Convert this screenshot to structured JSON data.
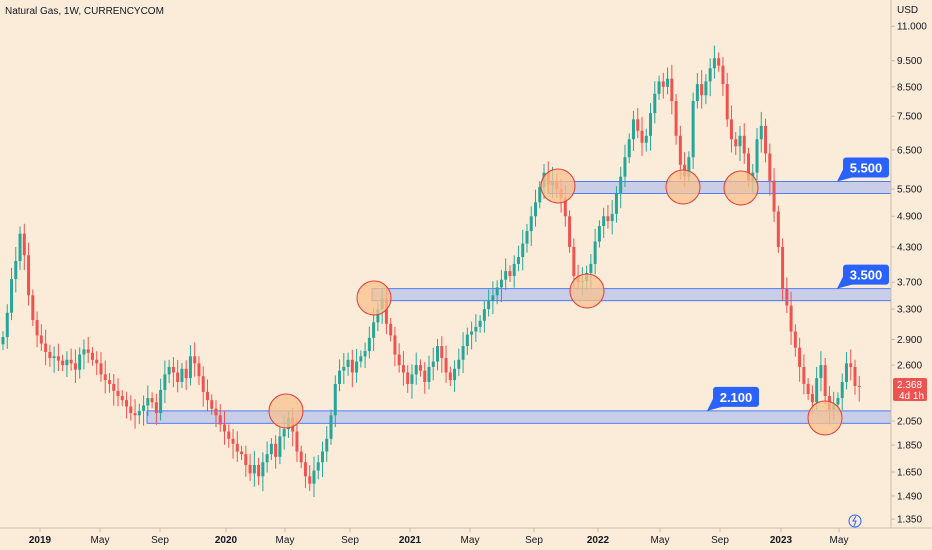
{
  "chart_data": {
    "type": "candlestick",
    "title": "Natural Gas, 1W, CURRENCYCOM",
    "currency": "USD",
    "y_scale": "log",
    "ylim": [
      1.3,
      12.3
    ],
    "y_ticks": [
      "11.000",
      "9.500",
      "8.500",
      "7.500",
      "6.500",
      "5.500",
      "4.900",
      "4.300",
      "3.700",
      "3.300",
      "2.900",
      "2.600",
      "2.050",
      "1.850",
      "1.650",
      "1.490",
      "1.350"
    ],
    "x_ticks": [
      {
        "label": "2019",
        "year": true
      },
      {
        "label": "May",
        "year": false
      },
      {
        "label": "Sep",
        "year": false
      },
      {
        "label": "2020",
        "year": true
      },
      {
        "label": "May",
        "year": false
      },
      {
        "label": "Sep",
        "year": false
      },
      {
        "label": "2021",
        "year": true
      },
      {
        "label": "May",
        "year": false
      },
      {
        "label": "Sep",
        "year": false
      },
      {
        "label": "2022",
        "year": true
      },
      {
        "label": "May",
        "year": false
      },
      {
        "label": "Sep",
        "year": false
      },
      {
        "label": "2023",
        "year": true
      },
      {
        "label": "May",
        "year": false
      }
    ],
    "colors": {
      "up": "#26a69a",
      "down": "#ef5350",
      "zone_fill": "#b8c4ee",
      "zone_stroke": "#2962ff",
      "tag": "#2962ff",
      "circle_fill": "#f9c28e",
      "circle_stroke": "#e53935",
      "background": "#faecd8"
    },
    "levels": [
      {
        "label": "5.500",
        "low": 5.4,
        "high": 5.68
      },
      {
        "label": "3.500",
        "low": 3.42,
        "high": 3.6
      },
      {
        "label": "2.100",
        "low": 2.03,
        "high": 2.14
      }
    ],
    "current_price": {
      "value": "2.368",
      "countdown": "4d 1h"
    },
    "weekly_closes": [
      2.93,
      3.25,
      3.75,
      4.05,
      4.55,
      4.15,
      3.5,
      3.15,
      2.95,
      2.85,
      2.75,
      2.68,
      2.7,
      2.65,
      2.6,
      2.66,
      2.62,
      2.55,
      2.72,
      2.78,
      2.74,
      2.66,
      2.62,
      2.5,
      2.44,
      2.4,
      2.33,
      2.28,
      2.24,
      2.18,
      2.12,
      2.1,
      2.14,
      2.19,
      2.26,
      2.22,
      2.12,
      2.34,
      2.5,
      2.58,
      2.52,
      2.42,
      2.56,
      2.46,
      2.7,
      2.62,
      2.48,
      2.32,
      2.24,
      2.16,
      2.1,
      2.02,
      1.96,
      1.9,
      1.86,
      1.8,
      1.78,
      1.7,
      1.64,
      1.7,
      1.62,
      1.72,
      1.78,
      1.86,
      1.76,
      1.92,
      1.98,
      2.08,
      1.96,
      1.8,
      1.72,
      1.62,
      1.57,
      1.66,
      1.72,
      1.8,
      1.9,
      2.1,
      2.4,
      2.54,
      2.58,
      2.66,
      2.52,
      2.64,
      2.7,
      2.76,
      2.92,
      3.12,
      3.3,
      3.45,
      3.1,
      2.95,
      2.72,
      2.6,
      2.52,
      2.4,
      2.5,
      2.6,
      2.54,
      2.42,
      2.58,
      2.64,
      2.82,
      2.68,
      2.52,
      2.44,
      2.56,
      2.66,
      2.82,
      2.96,
      3.0,
      3.06,
      3.14,
      3.3,
      3.42,
      3.5,
      3.62,
      3.74,
      3.88,
      3.8,
      4.0,
      4.12,
      4.36,
      4.6,
      4.9,
      5.2,
      5.55,
      5.9,
      5.6,
      5.7,
      5.5,
      5.3,
      4.9,
      4.3,
      3.8,
      3.7,
      3.72,
      3.85,
      4.0,
      4.4,
      4.7,
      4.9,
      4.8,
      4.95,
      5.4,
      5.8,
      6.3,
      6.8,
      7.4,
      7.05,
      6.7,
      6.9,
      7.6,
      8.25,
      8.7,
      8.5,
      8.8,
      8.0,
      6.9,
      6.1,
      5.8,
      6.3,
      8.0,
      8.6,
      8.2,
      8.7,
      9.2,
      9.6,
      9.3,
      8.6,
      7.4,
      6.8,
      6.6,
      6.9,
      6.4,
      5.7,
      5.9,
      6.8,
      7.2,
      6.4,
      5.7,
      5.0,
      4.3,
      3.6,
      3.35,
      3.0,
      2.8,
      2.58,
      2.4,
      2.3,
      2.22,
      2.46,
      2.6,
      2.28,
      2.15,
      2.2,
      2.26,
      2.42,
      2.62,
      2.58,
      2.38,
      2.37
    ]
  }
}
